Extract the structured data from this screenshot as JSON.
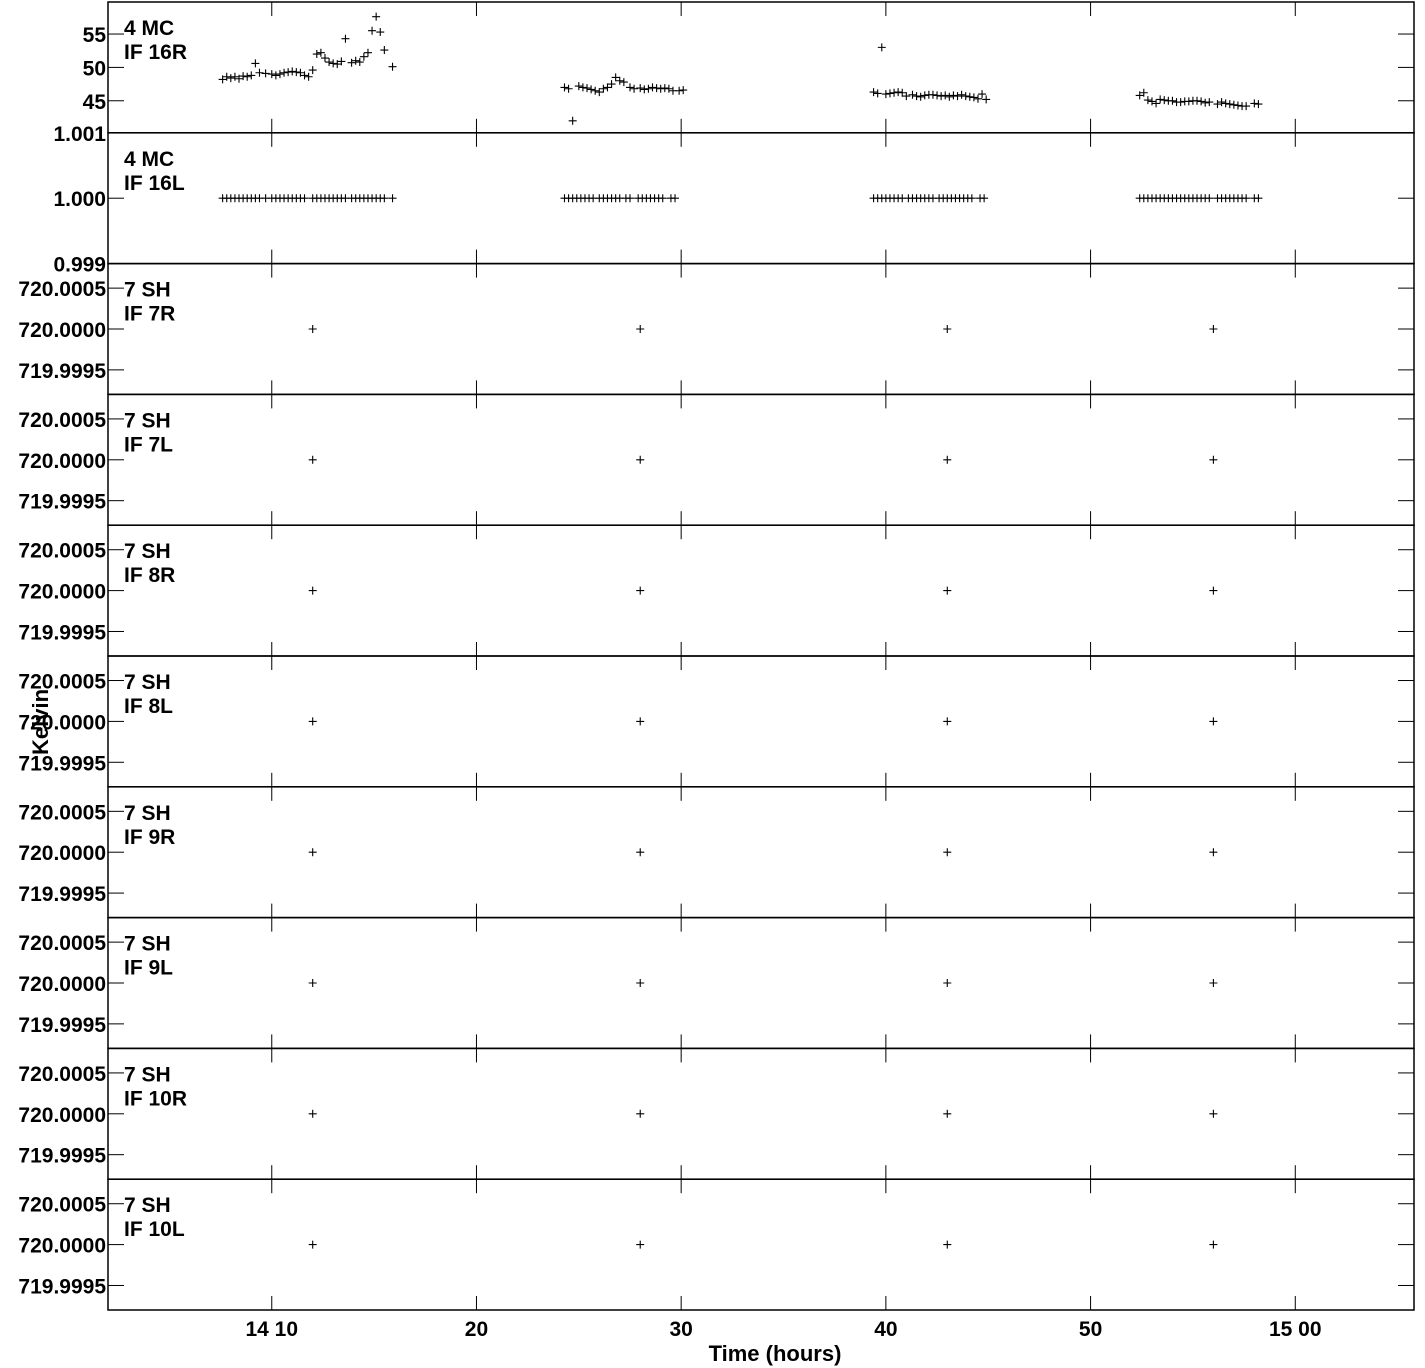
{
  "chart_data": {
    "type": "scatter",
    "xlabel": "Time (hours)",
    "ylabel": "Kelvin",
    "xlim": [
      13.0,
      76.8
    ],
    "x_ticks": [
      {
        "value": 21,
        "label": "14 10"
      },
      {
        "value": 31,
        "label": "20"
      },
      {
        "value": 41,
        "label": "30"
      },
      {
        "value": 51,
        "label": "40"
      },
      {
        "value": 61,
        "label": "50"
      },
      {
        "value": 71,
        "label": "15 00"
      }
    ],
    "panels": [
      {
        "label1": "4 MC",
        "label2": "IF 16R",
        "ylim": [
          40.2,
          59.8
        ],
        "y_ticks": [
          {
            "value": 45,
            "label": "45"
          },
          {
            "value": 50,
            "label": "50"
          },
          {
            "value": 55,
            "label": "55"
          }
        ],
        "points": [
          [
            18.6,
            48.2
          ],
          [
            18.8,
            48.6
          ],
          [
            19.0,
            48.4
          ],
          [
            19.2,
            48.6
          ],
          [
            19.4,
            48.3
          ],
          [
            19.6,
            48.7
          ],
          [
            19.8,
            48.6
          ],
          [
            20.0,
            48.8
          ],
          [
            20.2,
            50.6
          ],
          [
            20.4,
            49.2
          ],
          [
            20.7,
            49.1
          ],
          [
            21.0,
            49.0
          ],
          [
            21.2,
            48.8
          ],
          [
            21.4,
            49.0
          ],
          [
            21.6,
            49.2
          ],
          [
            21.8,
            49.3
          ],
          [
            22.0,
            49.4
          ],
          [
            22.2,
            49.3
          ],
          [
            22.4,
            49.2
          ],
          [
            22.6,
            48.8
          ],
          [
            22.8,
            48.6
          ],
          [
            23.0,
            49.6
          ],
          [
            23.2,
            52.0
          ],
          [
            23.4,
            52.2
          ],
          [
            23.6,
            51.4
          ],
          [
            23.8,
            50.8
          ],
          [
            24.0,
            50.6
          ],
          [
            24.2,
            50.5
          ],
          [
            24.4,
            50.9
          ],
          [
            24.6,
            54.3
          ],
          [
            24.9,
            50.7
          ],
          [
            25.1,
            51.0
          ],
          [
            25.3,
            50.8
          ],
          [
            25.5,
            51.6
          ],
          [
            25.7,
            52.2
          ],
          [
            25.9,
            55.5
          ],
          [
            26.1,
            57.6
          ],
          [
            26.3,
            55.3
          ],
          [
            26.5,
            52.6
          ],
          [
            26.9,
            50.1
          ],
          [
            35.3,
            47.0
          ],
          [
            35.5,
            46.8
          ],
          [
            35.7,
            42.0
          ],
          [
            36.0,
            47.2
          ],
          [
            36.2,
            47.0
          ],
          [
            36.4,
            46.9
          ],
          [
            36.6,
            46.7
          ],
          [
            36.8,
            46.5
          ],
          [
            37.0,
            46.3
          ],
          [
            37.2,
            46.8
          ],
          [
            37.4,
            47.0
          ],
          [
            37.6,
            47.5
          ],
          [
            37.8,
            48.5
          ],
          [
            38.0,
            48.0
          ],
          [
            38.2,
            47.8
          ],
          [
            38.5,
            47.0
          ],
          [
            38.7,
            46.8
          ],
          [
            39.0,
            46.9
          ],
          [
            39.2,
            46.7
          ],
          [
            39.4,
            46.8
          ],
          [
            39.6,
            47.0
          ],
          [
            39.8,
            46.9
          ],
          [
            40.0,
            46.8
          ],
          [
            40.2,
            46.9
          ],
          [
            40.4,
            46.8
          ],
          [
            40.6,
            46.5
          ],
          [
            40.9,
            46.5
          ],
          [
            41.1,
            46.6
          ],
          [
            50.4,
            46.3
          ],
          [
            50.6,
            46.1
          ],
          [
            50.8,
            53.0
          ],
          [
            51.0,
            46.0
          ],
          [
            51.2,
            46.1
          ],
          [
            51.4,
            46.2
          ],
          [
            51.6,
            46.3
          ],
          [
            51.8,
            46.2
          ],
          [
            52.0,
            45.7
          ],
          [
            52.3,
            45.9
          ],
          [
            52.5,
            45.7
          ],
          [
            52.7,
            45.6
          ],
          [
            52.9,
            45.8
          ],
          [
            53.1,
            45.9
          ],
          [
            53.3,
            45.9
          ],
          [
            53.5,
            45.8
          ],
          [
            53.7,
            45.7
          ],
          [
            53.9,
            45.8
          ],
          [
            54.1,
            45.6
          ],
          [
            54.3,
            45.8
          ],
          [
            54.5,
            45.7
          ],
          [
            54.7,
            45.9
          ],
          [
            54.9,
            45.7
          ],
          [
            55.1,
            45.6
          ],
          [
            55.3,
            45.5
          ],
          [
            55.5,
            45.3
          ],
          [
            55.7,
            46.0
          ],
          [
            55.9,
            45.2
          ],
          [
            63.4,
            45.8
          ],
          [
            63.6,
            46.2
          ],
          [
            63.8,
            45.1
          ],
          [
            64.0,
            44.9
          ],
          [
            64.2,
            44.6
          ],
          [
            64.4,
            45.2
          ],
          [
            64.6,
            45.1
          ],
          [
            64.8,
            45.0
          ],
          [
            65.0,
            45.0
          ],
          [
            65.2,
            44.8
          ],
          [
            65.4,
            44.8
          ],
          [
            65.6,
            44.9
          ],
          [
            65.8,
            44.9
          ],
          [
            66.0,
            45.0
          ],
          [
            66.2,
            45.0
          ],
          [
            66.4,
            44.9
          ],
          [
            66.6,
            44.7
          ],
          [
            66.8,
            44.8
          ],
          [
            67.2,
            44.5
          ],
          [
            67.4,
            44.8
          ],
          [
            67.6,
            44.6
          ],
          [
            67.8,
            44.5
          ],
          [
            68.0,
            44.4
          ],
          [
            68.2,
            44.3
          ],
          [
            68.4,
            44.2
          ],
          [
            68.6,
            44.2
          ],
          [
            69.0,
            44.6
          ],
          [
            69.2,
            44.5
          ]
        ]
      },
      {
        "label1": "4 MC",
        "label2": "IF 16L",
        "ylim": [
          0.999,
          1.001
        ],
        "y_ticks": [
          {
            "value": 0.999,
            "label": "0.999"
          },
          {
            "value": 1.0,
            "label": "1.000"
          },
          {
            "value": 1.001,
            "label": "1.001"
          }
        ],
        "constant": 1.0,
        "xs": [
          18.6,
          18.8,
          19.0,
          19.2,
          19.4,
          19.6,
          19.8,
          20.0,
          20.2,
          20.4,
          20.7,
          21.0,
          21.2,
          21.4,
          21.6,
          21.8,
          22.0,
          22.2,
          22.4,
          22.6,
          23.0,
          23.2,
          23.4,
          23.6,
          23.8,
          24.0,
          24.2,
          24.4,
          24.6,
          24.9,
          25.1,
          25.3,
          25.5,
          25.7,
          25.9,
          26.1,
          26.3,
          26.5,
          26.9,
          35.3,
          35.5,
          35.7,
          35.9,
          36.1,
          36.3,
          36.5,
          36.7,
          37.0,
          37.2,
          37.4,
          37.6,
          37.8,
          38.0,
          38.3,
          38.5,
          38.9,
          39.1,
          39.3,
          39.5,
          39.7,
          39.9,
          40.1,
          40.5,
          40.7,
          50.4,
          50.6,
          50.8,
          51.0,
          51.2,
          51.4,
          51.6,
          51.8,
          52.1,
          52.3,
          52.5,
          52.7,
          52.9,
          53.1,
          53.3,
          53.6,
          53.8,
          54.0,
          54.2,
          54.4,
          54.6,
          54.8,
          55.0,
          55.2,
          55.6,
          55.8,
          63.4,
          63.6,
          63.8,
          64.0,
          64.2,
          64.4,
          64.6,
          64.8,
          65.0,
          65.2,
          65.4,
          65.6,
          65.8,
          66.0,
          66.2,
          66.4,
          66.6,
          66.8,
          67.2,
          67.4,
          67.6,
          67.8,
          68.0,
          68.2,
          68.4,
          68.6,
          69.0,
          69.2
        ]
      },
      {
        "label1": "7 SH",
        "label2": "IF 7R",
        "ylim": [
          719.9992,
          720.0008
        ],
        "y_ticks": [
          {
            "value": 719.9995,
            "label": "719.9995"
          },
          {
            "value": 720.0,
            "label": "720.0000"
          },
          {
            "value": 720.0005,
            "label": "720.0005"
          }
        ],
        "constant": 720.0,
        "xs": [
          23.0,
          39.0,
          54.0,
          67.0
        ]
      },
      {
        "label1": "7 SH",
        "label2": "IF 7L",
        "ylim": [
          719.9992,
          720.0008
        ],
        "y_ticks": [
          {
            "value": 719.9995,
            "label": "719.9995"
          },
          {
            "value": 720.0,
            "label": "720.0000"
          },
          {
            "value": 720.0005,
            "label": "720.0005"
          }
        ],
        "constant": 720.0,
        "xs": [
          23.0,
          39.0,
          54.0,
          67.0
        ]
      },
      {
        "label1": "7 SH",
        "label2": "IF 8R",
        "ylim": [
          719.9992,
          720.0008
        ],
        "y_ticks": [
          {
            "value": 719.9995,
            "label": "719.9995"
          },
          {
            "value": 720.0,
            "label": "720.0000"
          },
          {
            "value": 720.0005,
            "label": "720.0005"
          }
        ],
        "constant": 720.0,
        "xs": [
          23.0,
          39.0,
          54.0,
          67.0
        ]
      },
      {
        "label1": "7 SH",
        "label2": "IF 8L",
        "ylim": [
          719.9992,
          720.0008
        ],
        "y_ticks": [
          {
            "value": 719.9995,
            "label": "719.9995"
          },
          {
            "value": 720.0,
            "label": "720.0000"
          },
          {
            "value": 720.0005,
            "label": "720.0005"
          }
        ],
        "constant": 720.0,
        "xs": [
          23.0,
          39.0,
          54.0,
          67.0
        ]
      },
      {
        "label1": "7 SH",
        "label2": "IF 9R",
        "ylim": [
          719.9992,
          720.0008
        ],
        "y_ticks": [
          {
            "value": 719.9995,
            "label": "719.9995"
          },
          {
            "value": 720.0,
            "label": "720.0000"
          },
          {
            "value": 720.0005,
            "label": "720.0005"
          }
        ],
        "constant": 720.0,
        "xs": [
          23.0,
          39.0,
          54.0,
          67.0
        ]
      },
      {
        "label1": "7 SH",
        "label2": "IF 9L",
        "ylim": [
          719.9992,
          720.0008
        ],
        "y_ticks": [
          {
            "value": 719.9995,
            "label": "719.9995"
          },
          {
            "value": 720.0,
            "label": "720.0000"
          },
          {
            "value": 720.0005,
            "label": "720.0005"
          }
        ],
        "constant": 720.0,
        "xs": [
          23.0,
          39.0,
          54.0,
          67.0
        ]
      },
      {
        "label1": "7 SH",
        "label2": "IF 10R",
        "ylim": [
          719.9992,
          720.0008
        ],
        "y_ticks": [
          {
            "value": 719.9995,
            "label": "719.9995"
          },
          {
            "value": 720.0,
            "label": "720.0000"
          },
          {
            "value": 720.0005,
            "label": "720.0005"
          }
        ],
        "constant": 720.0,
        "xs": [
          23.0,
          39.0,
          54.0,
          67.0
        ]
      },
      {
        "label1": "7 SH",
        "label2": "IF 10L",
        "ylim": [
          719.9992,
          720.0008
        ],
        "y_ticks": [
          {
            "value": 719.9995,
            "label": "719.9995"
          },
          {
            "value": 720.0,
            "label": "720.0000"
          },
          {
            "value": 720.0005,
            "label": "720.0005"
          }
        ],
        "constant": 720.0,
        "xs": [
          23.0,
          39.0,
          54.0,
          67.0
        ]
      }
    ]
  }
}
